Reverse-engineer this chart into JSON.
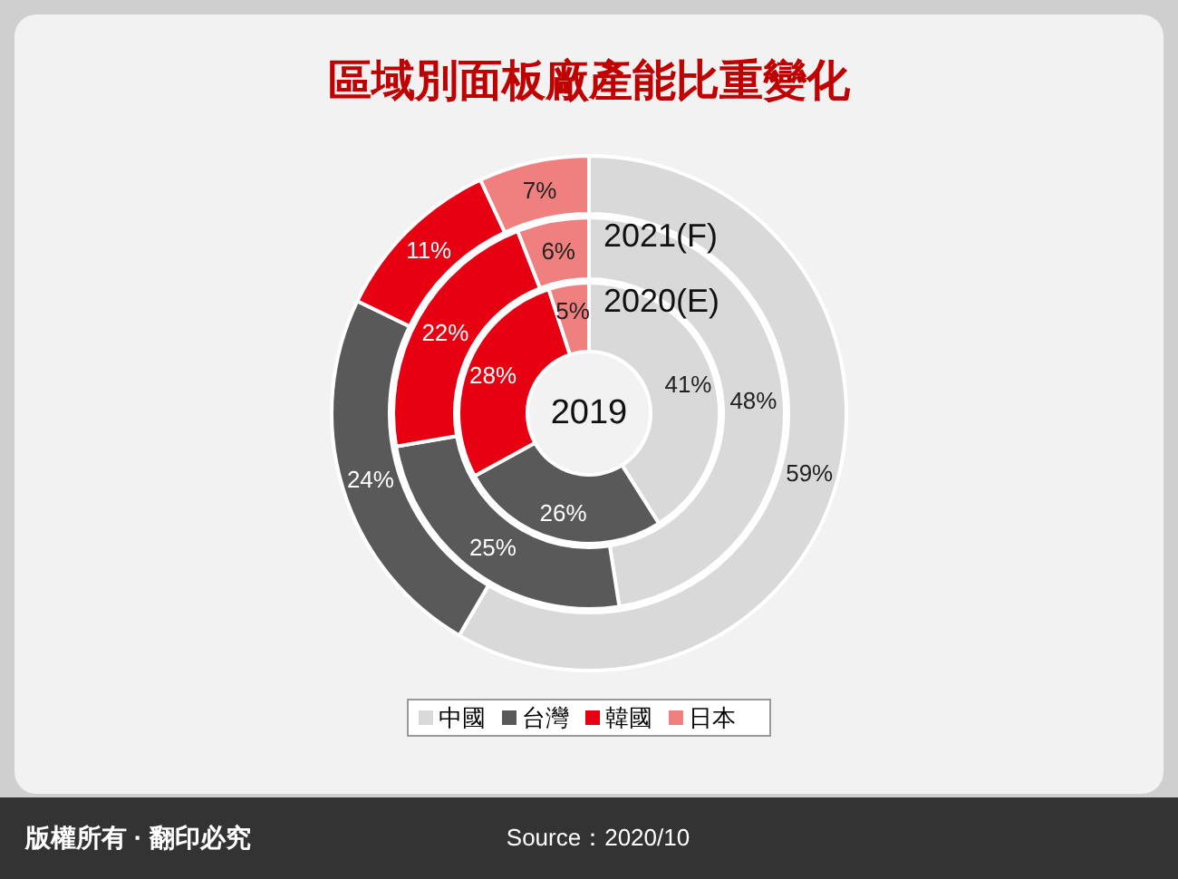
{
  "chart_data": {
    "type": "donut",
    "title": "區域別面板廠產能比重變化",
    "categories": [
      "中國",
      "台灣",
      "韓國",
      "日本"
    ],
    "colors": [
      "#d9d9d9",
      "#595959",
      "#e60012",
      "#f08080"
    ],
    "series": [
      {
        "name": "2019",
        "values": [
          41,
          26,
          28,
          5
        ],
        "value_labels": [
          "41%",
          "26%",
          "28%",
          "5%"
        ]
      },
      {
        "name": "2020(E)",
        "values": [
          48,
          25,
          22,
          6
        ],
        "value_labels": [
          "48%",
          "25%",
          "22%",
          "6%"
        ]
      },
      {
        "name": "2021(F)",
        "values": [
          59,
          24,
          11,
          7
        ],
        "value_labels": [
          "59%",
          "24%",
          "11%",
          "7%"
        ]
      }
    ],
    "legend": "bottom",
    "annotations": [
      "版權所有 · 翻印必究",
      "Source：2020/10"
    ]
  }
}
